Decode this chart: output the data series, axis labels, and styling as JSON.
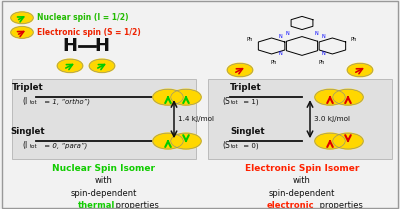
{
  "bg_color": "#f2f2f2",
  "box_color": "#e0e0e0",
  "legend_nuclear_color": "#22bb00",
  "legend_electronic_color": "#ee2200",
  "legend_nuclear_text": "Nuclear spin (I = 1/2)",
  "legend_electronic_text": "Electronic spin (S = 1/2)",
  "left_energy": "1.4 kJ/mol",
  "right_energy": "3.0 kJ/mol",
  "left_triplet_line1": "Triplet",
  "left_triplet_line2": "(I",
  "left_triplet_line2b": "tot",
  "left_triplet_line2c": " = 1, “ortho”)",
  "left_singlet_line1": "Singlet",
  "left_singlet_line2": "(I",
  "left_singlet_line2b": "tot",
  "left_singlet_line2c": " = 0, “para”)",
  "right_triplet_line1": "Triplet",
  "right_triplet_line2": "(S",
  "right_triplet_line2b": "tot",
  "right_triplet_line2c": " = 1)",
  "right_singlet_line1": "Singlet",
  "right_singlet_line2": "(S",
  "right_singlet_line2b": "tot",
  "right_singlet_line2c": " = 0)",
  "left_footer1": "Nuclear Spin Isomer",
  "left_footer2": "with",
  "left_footer3": "spin-dependent",
  "left_footer4_colored": "thermal",
  "left_footer4_rest": " properties",
  "right_footer1": "Electronic Spin Isomer",
  "right_footer2": "with",
  "right_footer3": "spin-dependent",
  "right_footer4_colored": "electronic",
  "right_footer4_rest": " properties",
  "left_footer_color": "#11cc00",
  "right_footer_color": "#ff2200",
  "yellow": "#FFD700",
  "green_arrow": "#00cc00",
  "red_arrow": "#dd0000",
  "text_black": "#111111"
}
